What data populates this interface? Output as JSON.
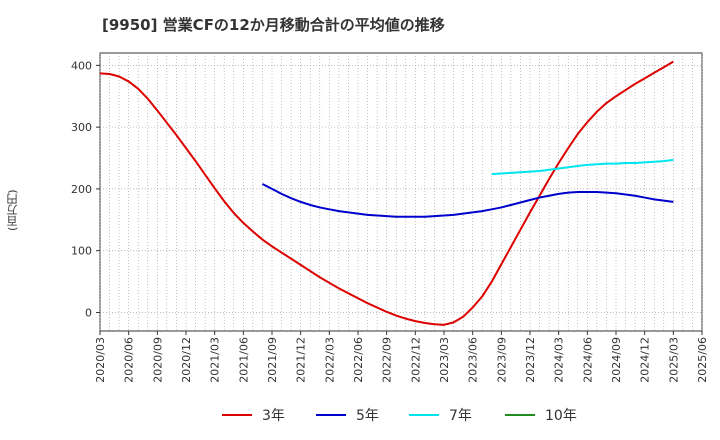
{
  "chart_data": {
    "type": "line",
    "title": "[9950]  営業CFの12か月移動合計の平均値の推移",
    "ylabel": "(百万円)",
    "xlabel": "",
    "ylim": [
      -30,
      420
    ],
    "yticks": [
      0,
      100,
      200,
      300,
      400
    ],
    "x_ticks": [
      "2020/03",
      "2020/06",
      "2020/09",
      "2020/12",
      "2021/03",
      "2021/06",
      "2021/09",
      "2021/12",
      "2022/03",
      "2022/06",
      "2022/09",
      "2022/12",
      "2023/03",
      "2023/06",
      "2023/09",
      "2023/12",
      "2024/03",
      "2024/06",
      "2024/09",
      "2024/12",
      "2025/03",
      "2025/06"
    ],
    "grid": true,
    "legend_position": "bottom",
    "series": [
      {
        "name": "3年",
        "color": "#dd0000",
        "x": [
          "2020/03",
          "2020/04",
          "2020/05",
          "2020/06",
          "2020/07",
          "2020/08",
          "2020/09",
          "2020/10",
          "2020/11",
          "2020/12",
          "2021/01",
          "2021/02",
          "2021/03",
          "2021/04",
          "2021/05",
          "2021/06",
          "2021/07",
          "2021/08",
          "2021/09",
          "2021/10",
          "2021/11",
          "2021/12",
          "2022/01",
          "2022/02",
          "2022/03",
          "2022/04",
          "2022/05",
          "2022/06",
          "2022/07",
          "2022/08",
          "2022/09",
          "2022/10",
          "2022/11",
          "2022/12",
          "2023/01",
          "2023/02",
          "2023/03",
          "2023/04",
          "2023/05",
          "2023/06",
          "2023/07",
          "2023/08",
          "2023/09",
          "2023/10",
          "2023/11",
          "2023/12",
          "2024/01",
          "2024/02",
          "2024/03",
          "2024/04",
          "2024/05",
          "2024/06",
          "2024/07",
          "2024/08",
          "2024/09",
          "2024/10",
          "2024/11",
          "2024/12",
          "2025/01",
          "2025/02",
          "2025/03"
        ],
        "values": [
          387,
          386,
          382,
          374,
          362,
          346,
          327,
          307,
          287,
          266,
          245,
          223,
          201,
          180,
          161,
          145,
          131,
          118,
          107,
          97,
          87,
          77,
          67,
          57,
          48,
          39,
          31,
          23,
          15,
          8,
          1,
          -5,
          -10,
          -14,
          -17,
          -19,
          -20,
          -16,
          -7,
          8,
          26,
          50,
          78,
          106,
          134,
          162,
          189,
          216,
          242,
          266,
          289,
          308,
          325,
          339,
          350,
          360,
          370,
          379,
          388,
          397,
          406
        ],
        "x_start": "2020/03"
      },
      {
        "name": "5年",
        "color": "#0000cc",
        "x": [
          "2021/08",
          "2021/09",
          "2021/10",
          "2021/11",
          "2021/12",
          "2022/01",
          "2022/02",
          "2022/03",
          "2022/04",
          "2022/05",
          "2022/06",
          "2022/07",
          "2022/08",
          "2022/09",
          "2022/10",
          "2022/11",
          "2022/12",
          "2023/01",
          "2023/02",
          "2023/03",
          "2023/04",
          "2023/05",
          "2023/06",
          "2023/07",
          "2023/08",
          "2023/09",
          "2023/10",
          "2023/11",
          "2023/12",
          "2024/01",
          "2024/02",
          "2024/03",
          "2024/04",
          "2024/05",
          "2024/06",
          "2024/07",
          "2024/08",
          "2024/09",
          "2024/10",
          "2024/11",
          "2024/12",
          "2025/01",
          "2025/02",
          "2025/03"
        ],
        "values": [
          208,
          200,
          192,
          185,
          179,
          174,
          170,
          167,
          164,
          162,
          160,
          158,
          157,
          156,
          155,
          155,
          155,
          155,
          156,
          157,
          158,
          160,
          162,
          164,
          167,
          170,
          174,
          178,
          182,
          186,
          189,
          192,
          194,
          195,
          195,
          195,
          194,
          193,
          191,
          189,
          186,
          183,
          181,
          179
        ],
        "x_start": "2021/08"
      },
      {
        "name": "7年",
        "color": "#00e5ee",
        "x": [
          "2023/08",
          "2023/09",
          "2023/10",
          "2023/11",
          "2023/12",
          "2024/01",
          "2024/02",
          "2024/03",
          "2024/04",
          "2024/05",
          "2024/06",
          "2024/07",
          "2024/08",
          "2024/09",
          "2024/10",
          "2024/11",
          "2024/12",
          "2025/01",
          "2025/02",
          "2025/03"
        ],
        "values": [
          224,
          225,
          226,
          227,
          228,
          229,
          231,
          233,
          235,
          237,
          239,
          240,
          241,
          241,
          242,
          242,
          243,
          244,
          245,
          247
        ],
        "x_start": "2023/08"
      },
      {
        "name": "10年",
        "color": "#228b22",
        "x": [],
        "values": [],
        "x_start": "2020/03"
      }
    ]
  }
}
